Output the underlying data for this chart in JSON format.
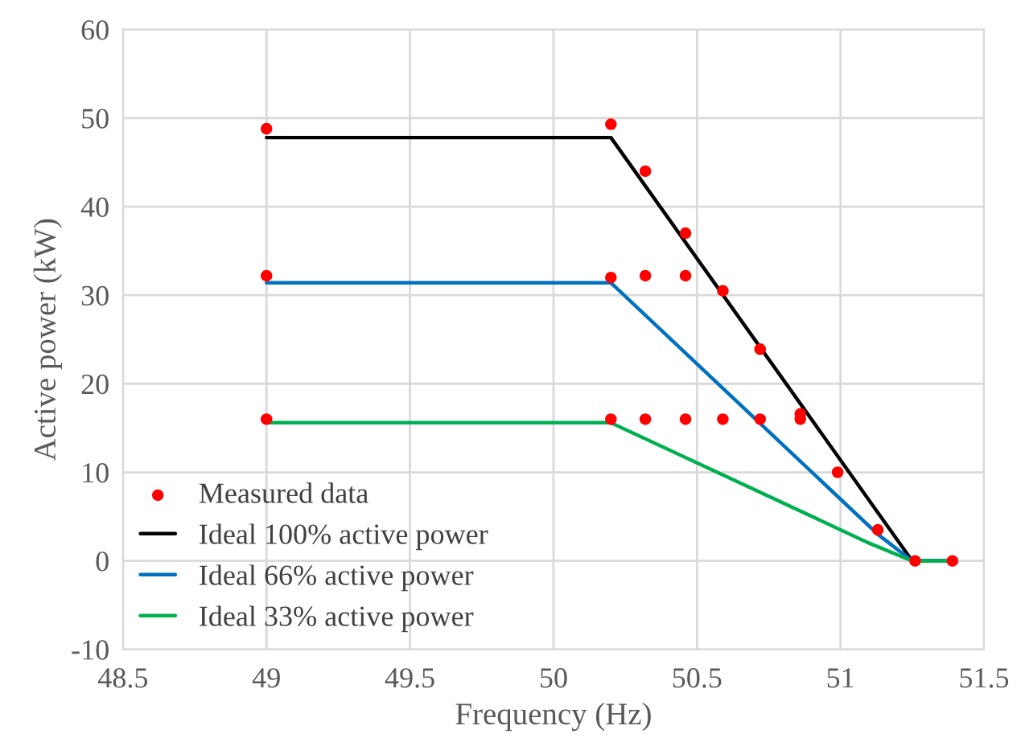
{
  "chart_data": {
    "type": "line",
    "xlabel": "Frequency (Hz)",
    "ylabel": "Active power (kW)",
    "xlim": [
      48.5,
      51.5
    ],
    "xticks": [
      48.5,
      49,
      49.5,
      50,
      50.5,
      51,
      51.5
    ],
    "ylim": [
      -10,
      60
    ],
    "yticks": [
      -10,
      0,
      10,
      20,
      30,
      40,
      50,
      60
    ],
    "grid": true,
    "legend": "bottom left",
    "series": [
      {
        "name": "Measured data",
        "type": "scatter",
        "marker": "circle",
        "color": "#ff0000",
        "x": [
          49,
          49,
          49,
          50.2,
          50.2,
          50.2,
          50.32,
          50.32,
          50.32,
          50.46,
          50.46,
          50.46,
          50.59,
          50.59,
          50.72,
          50.72,
          50.86,
          50.86,
          50.99,
          51.13,
          51.26,
          51.39
        ],
        "values": [
          48.8,
          32.2,
          16,
          49.3,
          32,
          16,
          44,
          32.2,
          16,
          37,
          32.2,
          16,
          30.5,
          16,
          23.9,
          16,
          16.6,
          16,
          10,
          3.5,
          0,
          0
        ]
      },
      {
        "name": "Ideal 100% active power",
        "color": "#000000",
        "x": [
          49,
          50.2,
          51.25,
          51.39
        ],
        "values": [
          47.8,
          47.8,
          0,
          0
        ]
      },
      {
        "name": "Ideal 66% active power",
        "color": "#0070c0",
        "x": [
          49,
          50.2,
          51.13,
          51.25,
          51.39
        ],
        "values": [
          31.4,
          31.4,
          3,
          0,
          0
        ]
      },
      {
        "name": "Ideal 33% active power",
        "color": "#00b050",
        "x": [
          49,
          50.2,
          51.1,
          51.25,
          51.39
        ],
        "values": [
          15.6,
          15.6,
          2,
          0,
          0
        ]
      }
    ]
  }
}
